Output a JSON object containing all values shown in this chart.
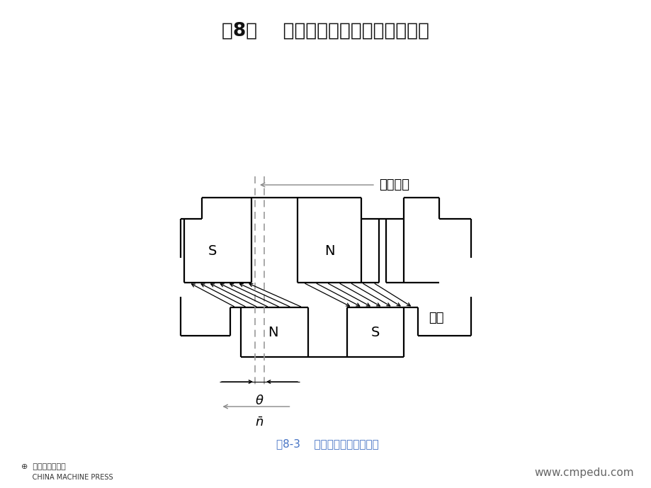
{
  "title": "第8章    三相同步电机及其他电机简介",
  "title_bg": "#9090bb",
  "title_color": "#111111",
  "fig_bg": "#ffffff",
  "caption": "图8-3    三相同步电动机原理图",
  "caption_color": "#4472c4",
  "label_dengxiao": "等效磁极",
  "label_zhuanzi": "转子",
  "publisher_line1": "机械工业出版社",
  "publisher_line2": "CHINA MACHINE PRESS",
  "website": "www.cmpedu.com",
  "line_color": "#000000",
  "dashed_color": "#999999",
  "arrow_color": "#888888"
}
